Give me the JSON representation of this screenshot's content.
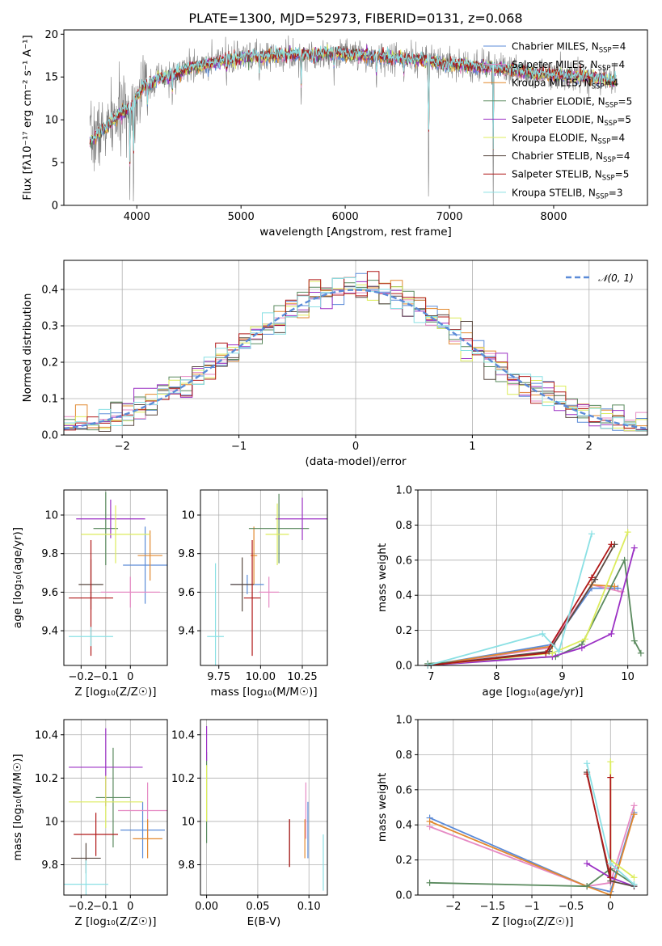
{
  "colors": {
    "Chabrier MILES": "#5b8bd8",
    "Salpeter MILES": "#e68ac4",
    "Kroupa MILES": "#e2892f",
    "Chabrier ELODIE": "#5a8a5e",
    "Salpeter ELODIE": "#9b30c4",
    "Kroupa ELODIE": "#dcec5c",
    "Chabrier STELIB": "#5a4a42",
    "Salpeter STELIB": "#b01818",
    "Kroupa STELIB": "#8ae0e4",
    "data": "#7f7f7f"
  },
  "chart_data": [
    {
      "id": "spectrum",
      "type": "line",
      "title": "PLATE=1300, MJD=52973, FIBERID=0131, z=0.068",
      "xlabel": "wavelength [Angstrom, rest frame]",
      "ylabel": "Flux [fλ10⁻¹⁷ erg cm⁻² s⁻¹ A⁻¹]",
      "xlim": [
        3300,
        8900
      ],
      "ylim": [
        0,
        20.5
      ],
      "xticks": [
        4000,
        5000,
        6000,
        7000,
        8000
      ],
      "yticks": [
        0,
        5,
        10,
        15,
        20
      ],
      "grid": false,
      "legend": "upper right",
      "legend_entries": [
        {
          "label": "Chabrier MILES, N",
          "sub": "SSP",
          "suffix": "=4"
        },
        {
          "label": "Salpeter MILES, N",
          "sub": "SSP",
          "suffix": "=4"
        },
        {
          "label": "Kroupa MILES, N",
          "sub": "SSP",
          "suffix": "=4"
        },
        {
          "label": "Chabrier ELODIE, N",
          "sub": "SSP",
          "suffix": "=5"
        },
        {
          "label": "Salpeter ELODIE, N",
          "sub": "SSP",
          "suffix": "=5"
        },
        {
          "label": "Kroupa ELODIE, N",
          "sub": "SSP",
          "suffix": "=4"
        },
        {
          "label": "Chabrier STELIB, N",
          "sub": "SSP",
          "suffix": "=4"
        },
        {
          "label": "Salpeter STELIB, N",
          "sub": "SSP",
          "suffix": "=5"
        },
        {
          "label": "Kroupa STELIB, N",
          "sub": "SSP",
          "suffix": "=3"
        }
      ],
      "continuum": {
        "x": [
          3550,
          3700,
          3850,
          3950,
          4050,
          4200,
          4350,
          4500,
          4700,
          4900,
          5100,
          5300,
          5500,
          5700,
          5900,
          6100,
          6300,
          6500,
          6700,
          6900,
          7100,
          7300,
          7500,
          7700,
          7900,
          8100,
          8300,
          8500,
          8600
        ],
        "y": [
          7.5,
          9.0,
          10.8,
          11.5,
          13.8,
          14.8,
          15.2,
          16.0,
          16.6,
          17.0,
          17.3,
          17.5,
          17.6,
          17.6,
          17.8,
          17.6,
          17.4,
          17.2,
          17.0,
          16.6,
          16.4,
          16.2,
          16.0,
          15.6,
          15.3,
          15.2,
          15.0,
          14.7,
          14.5
        ]
      },
      "features": [
        {
          "x": 3933,
          "y": 0
        },
        {
          "x": 3968,
          "y": 0
        },
        {
          "x": 4102,
          "y": 10.5
        },
        {
          "x": 4340,
          "y": 11.5
        },
        {
          "x": 4861,
          "y": 14.0
        },
        {
          "x": 5175,
          "y": 14.3
        },
        {
          "x": 5577,
          "y": 11.5
        },
        {
          "x": 5893,
          "y": 14.0
        },
        {
          "x": 6300,
          "y": 13.5
        },
        {
          "x": 6563,
          "y": 14.2
        },
        {
          "x": 6800,
          "y": 0
        },
        {
          "x": 7420,
          "y": 0
        }
      ]
    },
    {
      "id": "residuals",
      "type": "line",
      "xlabel": "(data-model)/error",
      "ylabel": "Normed distribution",
      "xlim": [
        -2.5,
        2.5
      ],
      "ylim": [
        0,
        0.48
      ],
      "xticks": [
        -2,
        -1,
        0,
        1,
        2
      ],
      "yticks": [
        0.0,
        0.1,
        0.2,
        0.3,
        0.4
      ],
      "grid": true,
      "legend": "upper right",
      "reference_label": "𝒩(0, 1)",
      "bin_width": 0.1
    },
    {
      "id": "age-vs-Z",
      "type": "scatter",
      "xlabel": "Z [log₁₀(Z/Z☉)]",
      "ylabel": "age  [log₁₀(age/yr)]",
      "xlim": [
        -0.27,
        0.15
      ],
      "ylim": [
        9.22,
        10.13
      ],
      "xticks": [
        -0.2,
        -0.1,
        0.0
      ],
      "yticks": [
        9.4,
        9.6,
        9.8,
        10.0
      ],
      "grid": true,
      "points": [
        {
          "series": "Chabrier MILES",
          "x": 0.06,
          "y": 9.74,
          "xerr": 0.09,
          "yerr": 0.2
        },
        {
          "series": "Salpeter MILES",
          "x": 0.0,
          "y": 9.6,
          "xerr": 0.12,
          "yerr": 0.08
        },
        {
          "series": "Kroupa MILES",
          "x": 0.08,
          "y": 9.79,
          "xerr": 0.05,
          "yerr": 0.13
        },
        {
          "series": "Chabrier ELODIE",
          "x": -0.1,
          "y": 9.93,
          "xerr": 0.05,
          "yerr": 0.19
        },
        {
          "series": "Salpeter ELODIE",
          "x": -0.08,
          "y": 9.98,
          "xerr": 0.14,
          "yerr": 0.1
        },
        {
          "series": "Kroupa ELODIE",
          "x": -0.06,
          "y": 9.9,
          "xerr": 0.14,
          "yerr": 0.15
        },
        {
          "series": "Chabrier STELIB",
          "x": -0.16,
          "y": 9.64,
          "xerr": 0.05,
          "yerr": 0.13
        },
        {
          "series": "Salpeter STELIB",
          "x": -0.16,
          "y": 9.57,
          "xerr": 0.09,
          "yerr": 0.3
        },
        {
          "series": "Kroupa STELIB",
          "x": -0.16,
          "y": 9.37,
          "xerr": 0.09,
          "yerr": 0.05
        }
      ]
    },
    {
      "id": "age-vs-mass",
      "type": "scatter",
      "xlabel": "mass [log₁₀(M/M☉)]",
      "ylabel": "",
      "xlim": [
        9.64,
        10.4
      ],
      "ylim": [
        9.22,
        10.13
      ],
      "xticks": [
        9.75,
        10.0,
        10.25
      ],
      "xticklabels": [
        "9.75",
        "10.00",
        "10.25"
      ],
      "yticks": [
        9.4,
        9.6,
        9.8,
        10.0
      ],
      "grid": true,
      "points": [
        {
          "series": "Chabrier MILES",
          "x": 9.92,
          "y": 9.64,
          "xerr": 0.1,
          "yerr": 0.05
        },
        {
          "series": "Salpeter MILES",
          "x": 10.05,
          "y": 9.6,
          "xerr": 0.06,
          "yerr": 0.08
        },
        {
          "series": "Kroupa MILES",
          "x": 9.96,
          "y": 9.79,
          "xerr": 0.02,
          "yerr": 0.15
        },
        {
          "series": "Chabrier ELODIE",
          "x": 10.11,
          "y": 9.93,
          "xerr": 0.18,
          "yerr": 0.18
        },
        {
          "series": "Salpeter ELODIE",
          "x": 10.25,
          "y": 9.98,
          "xerr": 0.16,
          "yerr": 0.11
        },
        {
          "series": "Kroupa ELODIE",
          "x": 10.1,
          "y": 9.9,
          "xerr": 0.07,
          "yerr": 0.16
        },
        {
          "series": "Chabrier STELIB",
          "x": 9.89,
          "y": 9.64,
          "xerr": 0.07,
          "yerr": 0.14
        },
        {
          "series": "Salpeter STELIB",
          "x": 9.95,
          "y": 9.57,
          "xerr": 0.05,
          "yerr": 0.3
        },
        {
          "series": "Kroupa STELIB",
          "x": 9.73,
          "y": 9.37,
          "xerr": 0.05,
          "yerr": 0.38
        }
      ]
    },
    {
      "id": "mass-weight-vs-age",
      "type": "line",
      "xlabel": "age  [log₁₀(age/yr)]",
      "ylabel": "mass weight",
      "xlim": [
        6.8,
        10.3
      ],
      "ylim": [
        0,
        1.0
      ],
      "xticks": [
        7,
        8,
        9,
        10
      ],
      "yticks": [
        0.0,
        0.2,
        0.4,
        0.6,
        0.8,
        1.0
      ],
      "grid": true,
      "series": [
        {
          "name": "Chabrier MILES",
          "x": [
            6.95,
            8.85,
            9.45,
            9.85
          ],
          "y": [
            0.0,
            0.12,
            0.44,
            0.44
          ]
        },
        {
          "name": "Salpeter MILES",
          "x": [
            6.95,
            8.8,
            9.45,
            9.9
          ],
          "y": [
            0.0,
            0.1,
            0.46,
            0.42
          ]
        },
        {
          "name": "Kroupa MILES",
          "x": [
            6.95,
            8.85,
            9.45,
            9.8
          ],
          "y": [
            0.0,
            0.11,
            0.46,
            0.45
          ]
        },
        {
          "name": "Chabrier ELODIE",
          "x": [
            6.95,
            8.9,
            9.3,
            9.95,
            10.1,
            10.2
          ],
          "y": [
            0.01,
            0.05,
            0.12,
            0.6,
            0.14,
            0.07
          ]
        },
        {
          "name": "Salpeter ELODIE",
          "x": [
            6.95,
            8.85,
            9.3,
            9.75,
            10.1
          ],
          "y": [
            0.0,
            0.05,
            0.1,
            0.18,
            0.67
          ]
        },
        {
          "name": "Kroupa ELODIE",
          "x": [
            6.95,
            8.85,
            9.35,
            10.0
          ],
          "y": [
            0.0,
            0.07,
            0.15,
            0.76
          ]
        },
        {
          "name": "Chabrier STELIB",
          "x": [
            6.95,
            8.8,
            9.5,
            9.8
          ],
          "y": [
            0.0,
            0.08,
            0.49,
            0.69
          ]
        },
        {
          "name": "Salpeter STELIB",
          "x": [
            6.95,
            8.75,
            9.45,
            9.75
          ],
          "y": [
            0.0,
            0.07,
            0.5,
            0.69
          ]
        },
        {
          "name": "Kroupa STELIB",
          "x": [
            6.95,
            8.7,
            8.95,
            9.45
          ],
          "y": [
            0.0,
            0.18,
            0.08,
            0.75
          ]
        }
      ]
    },
    {
      "id": "mass-vs-Z",
      "type": "scatter",
      "xlabel": "Z [log₁₀(Z/Z☉)]",
      "ylabel": "mass [log₁₀(M/M☉)]",
      "xlim": [
        -0.27,
        0.15
      ],
      "ylim": [
        9.66,
        10.47
      ],
      "xticks": [
        -0.2,
        -0.1,
        0.0
      ],
      "yticks": [
        9.8,
        10.0,
        10.2,
        10.4
      ],
      "grid": true,
      "points": [
        {
          "series": "Chabrier MILES",
          "x": 0.05,
          "y": 9.96,
          "xerr": 0.09,
          "yerr": 0.13
        },
        {
          "series": "Salpeter MILES",
          "x": 0.07,
          "y": 10.05,
          "xerr": 0.12,
          "yerr": 0.13
        },
        {
          "series": "Kroupa MILES",
          "x": 0.07,
          "y": 9.92,
          "xerr": 0.06,
          "yerr": 0.09
        },
        {
          "series": "Chabrier ELODIE",
          "x": -0.07,
          "y": 10.11,
          "xerr": 0.07,
          "yerr": 0.23
        },
        {
          "series": "Salpeter ELODIE",
          "x": -0.1,
          "y": 10.25,
          "xerr": 0.15,
          "yerr": 0.18
        },
        {
          "series": "Kroupa ELODIE",
          "x": -0.1,
          "y": 10.09,
          "xerr": 0.15,
          "yerr": 0.12
        },
        {
          "series": "Chabrier STELIB",
          "x": -0.18,
          "y": 9.83,
          "xerr": 0.06,
          "yerr": 0.07
        },
        {
          "series": "Salpeter STELIB",
          "x": -0.14,
          "y": 9.94,
          "xerr": 0.09,
          "yerr": 0.1
        },
        {
          "series": "Kroupa STELIB",
          "x": -0.18,
          "y": 9.71,
          "xerr": 0.09,
          "yerr": 0.11
        }
      ]
    },
    {
      "id": "mass-vs-ebv",
      "type": "scatter",
      "xlabel": "E(B-V)",
      "ylabel": "",
      "xlim": [
        -0.006,
        0.118
      ],
      "ylim": [
        9.66,
        10.47
      ],
      "xticks": [
        0.0,
        0.05,
        0.1
      ],
      "xticklabels": [
        "0.00",
        "0.05",
        "0.10"
      ],
      "yticks": [
        9.8,
        10.0,
        10.2,
        10.4
      ],
      "grid": true,
      "points": [
        {
          "series": "Chabrier MILES",
          "x": 0.099,
          "y": 9.96,
          "xerr": 0,
          "yerr": 0.13
        },
        {
          "series": "Salpeter MILES",
          "x": 0.097,
          "y": 10.05,
          "xerr": 0,
          "yerr": 0.13
        },
        {
          "series": "Kroupa MILES",
          "x": 0.096,
          "y": 9.92,
          "xerr": 0,
          "yerr": 0.09
        },
        {
          "series": "Chabrier ELODIE",
          "x": 0.0,
          "y": 10.11,
          "xerr": 0,
          "yerr": 0.21
        },
        {
          "series": "Salpeter ELODIE",
          "x": 0.0,
          "y": 10.36,
          "xerr": 0,
          "yerr": 0.08
        },
        {
          "series": "Kroupa ELODIE",
          "x": 0.0,
          "y": 10.13,
          "xerr": 0,
          "yerr": 0.13
        },
        {
          "series": "Chabrier STELIB",
          "x": 0.081,
          "y": 9.9,
          "xerr": 0,
          "yerr": 0.11
        },
        {
          "series": "Salpeter STELIB",
          "x": 0.081,
          "y": 9.9,
          "xerr": 0,
          "yerr": 0.11
        },
        {
          "series": "Kroupa STELIB",
          "x": 0.114,
          "y": 9.81,
          "xerr": 0,
          "yerr": 0.13
        }
      ]
    },
    {
      "id": "mass-weight-vs-Z",
      "type": "line",
      "xlabel": "Z [log₁₀(Z/Z☉)]",
      "ylabel": "mass weight",
      "xlim": [
        -2.45,
        0.47
      ],
      "ylim": [
        0,
        1.0
      ],
      "xticks": [
        -2.0,
        -1.5,
        -1.0,
        -0.5,
        0.0
      ],
      "yticks": [
        0.0,
        0.2,
        0.4,
        0.6,
        0.8,
        1.0
      ],
      "grid": true,
      "series": [
        {
          "name": "Chabrier MILES",
          "x": [
            -2.3,
            -0.3,
            0.0,
            0.3
          ],
          "y": [
            0.44,
            0.05,
            0.02,
            0.47
          ]
        },
        {
          "name": "Salpeter MILES",
          "x": [
            -2.3,
            -0.3,
            0.0,
            0.3
          ],
          "y": [
            0.39,
            0.05,
            0.07,
            0.51
          ]
        },
        {
          "name": "Kroupa MILES",
          "x": [
            -2.3,
            -0.3,
            0.0,
            0.3
          ],
          "y": [
            0.42,
            0.05,
            0.0,
            0.46
          ]
        },
        {
          "name": "Chabrier ELODIE",
          "x": [
            -2.3,
            -0.3,
            0.0,
            0.3
          ],
          "y": [
            0.07,
            0.05,
            0.15,
            0.06
          ]
        },
        {
          "name": "Salpeter ELODIE",
          "x": [
            -0.3,
            0.0,
            0.3
          ],
          "y": [
            0.18,
            0.1,
            0.05
          ]
        },
        {
          "name": "Kroupa ELODIE",
          "x": [
            0.0,
            0.0,
            0.3
          ],
          "y": [
            0.76,
            0.2,
            0.1
          ]
        },
        {
          "name": "Chabrier STELIB",
          "x": [
            -0.3,
            0.0,
            0.3
          ],
          "y": [
            0.7,
            0.08,
            0.05
          ]
        },
        {
          "name": "Salpeter STELIB",
          "x": [
            -0.3,
            0.0,
            0.0
          ],
          "y": [
            0.69,
            0.1,
            0.67
          ]
        },
        {
          "name": "Kroupa STELIB",
          "x": [
            -0.3,
            0.0,
            0.3
          ],
          "y": [
            0.75,
            0.18,
            0.06
          ]
        }
      ]
    }
  ]
}
